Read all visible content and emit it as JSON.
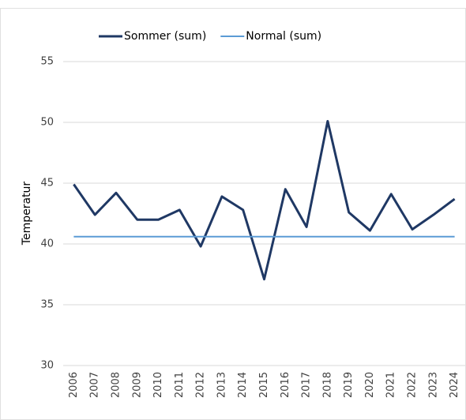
{
  "chart_data": {
    "type": "line",
    "ylabel": "Temperatur",
    "categories": [
      "2006",
      "2007",
      "2008",
      "2009",
      "2010",
      "2011",
      "2012",
      "2013",
      "2014",
      "2015",
      "2016",
      "2017",
      "2018",
      "2019",
      "2020",
      "2021",
      "2022",
      "2023",
      "2024"
    ],
    "series": [
      {
        "name": "Sommer (sum)",
        "color": "#1f3864",
        "values": [
          44.9,
          42.4,
          44.2,
          42.0,
          42.0,
          42.8,
          39.8,
          43.9,
          42.8,
          37.1,
          44.5,
          41.4,
          50.1,
          42.6,
          41.1,
          44.1,
          41.2,
          42.4,
          43.7
        ]
      },
      {
        "name": "Normal (sum)",
        "color": "#5b9bd5",
        "values": [
          40.6,
          40.6,
          40.6,
          40.6,
          40.6,
          40.6,
          40.6,
          40.6,
          40.6,
          40.6,
          40.6,
          40.6,
          40.6,
          40.6,
          40.6,
          40.6,
          40.6,
          40.6,
          40.6
        ]
      }
    ],
    "ylim": [
      30,
      55
    ],
    "yticks": [
      30,
      35,
      40,
      45,
      50,
      55
    ],
    "grid": true,
    "legend": "top"
  }
}
